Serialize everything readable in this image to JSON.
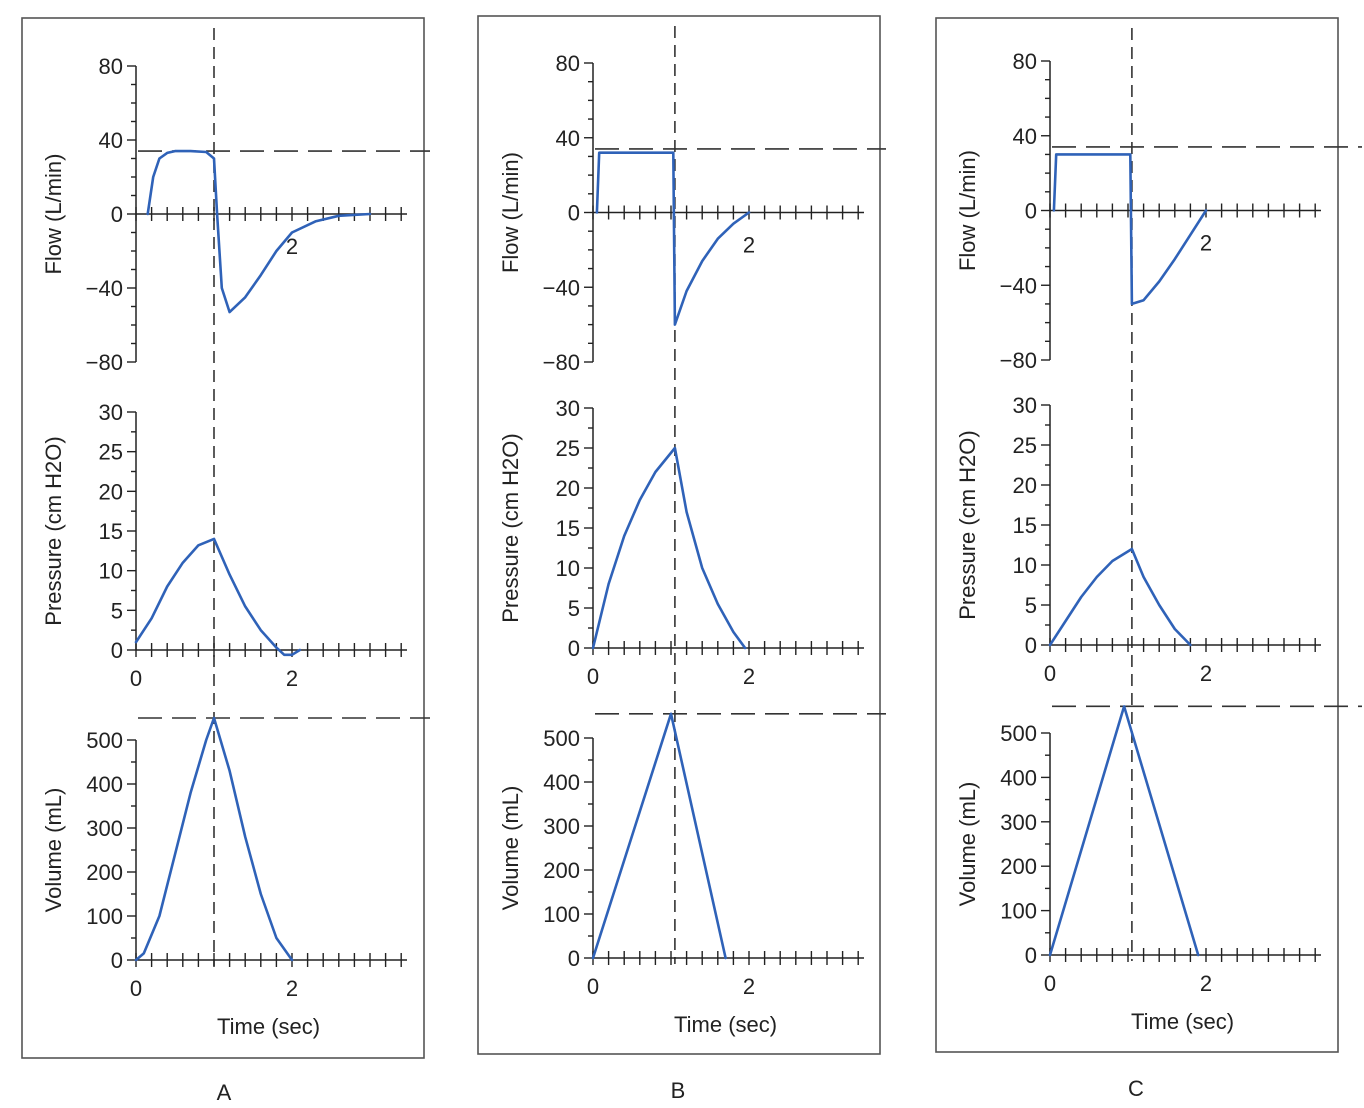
{
  "colors": {
    "curve": "#2f62b8",
    "axis": "#222222",
    "reference": "#333333"
  },
  "chart_data": [
    {
      "type": "line",
      "panel_label": "A",
      "xlabel": "Time (sec)",
      "xlim": [
        0,
        3.5
      ],
      "x_tick_labels": [
        "0",
        "2"
      ],
      "inspiration_end_time": 1.0,
      "subplots": [
        {
          "name": "flow",
          "ylabel": "Flow (L/min)",
          "ylim": [
            -80,
            80
          ],
          "y_tick_labels": [
            "80",
            "40",
            "0",
            "−40",
            "−80"
          ],
          "reference_y": 34,
          "annotations": [
            {
              "text": "2",
              "x": 2.0
            }
          ],
          "x": [
            0.15,
            0.22,
            0.3,
            0.4,
            0.5,
            0.7,
            0.9,
            1.0,
            1.04,
            1.1,
            1.2,
            1.4,
            1.6,
            1.8,
            2.0,
            2.3,
            2.6,
            3.0
          ],
          "y": [
            0,
            20,
            30,
            33,
            34,
            34,
            33.5,
            30,
            0,
            -40,
            -53,
            -45,
            -33,
            -20,
            -10,
            -4,
            -1,
            0
          ]
        },
        {
          "name": "pressure",
          "ylabel": "Pressure (cm H2O)",
          "ylim": [
            0,
            30
          ],
          "y_tick_labels": [
            "30",
            "25",
            "20",
            "15",
            "10",
            "5",
            "0"
          ],
          "x_tick_labels": [
            "0",
            "2"
          ],
          "x": [
            0,
            0.2,
            0.4,
            0.6,
            0.8,
            1.0,
            1.2,
            1.4,
            1.6,
            1.8,
            1.9,
            2.0,
            2.1
          ],
          "y": [
            1,
            4,
            8,
            11,
            13.2,
            14,
            9.5,
            5.5,
            2.5,
            0.3,
            -0.6,
            -0.6,
            0
          ]
        },
        {
          "name": "volume",
          "ylabel": "Volume (mL)",
          "ylim": [
            0,
            500
          ],
          "y_tick_labels": [
            "500",
            "400",
            "300",
            "200",
            "100",
            "0"
          ],
          "x_tick_labels": [
            "0",
            "2"
          ],
          "reference_y": 550,
          "x": [
            0,
            0.1,
            0.3,
            0.5,
            0.7,
            0.9,
            1.0,
            1.2,
            1.4,
            1.6,
            1.8,
            2.0
          ],
          "y": [
            0,
            15,
            100,
            240,
            380,
            500,
            550,
            430,
            280,
            150,
            50,
            0
          ]
        }
      ]
    },
    {
      "type": "line",
      "panel_label": "B",
      "xlabel": "Time (sec)",
      "xlim": [
        0,
        3.5
      ],
      "x_tick_labels": [
        "0",
        "2"
      ],
      "inspiration_end_time": 1.05,
      "subplots": [
        {
          "name": "flow",
          "ylabel": "Flow (L/min)",
          "ylim": [
            -80,
            80
          ],
          "y_tick_labels": [
            "80",
            "40",
            "0",
            "−40",
            "−80"
          ],
          "reference_y": 34,
          "annotations": [
            {
              "text": "2",
              "x": 2.0
            }
          ],
          "x": [
            0.05,
            0.08,
            1.03,
            1.05,
            1.2,
            1.4,
            1.6,
            1.8,
            2.0
          ],
          "y": [
            0,
            32,
            32,
            -60,
            -42,
            -26,
            -14,
            -6,
            0
          ]
        },
        {
          "name": "pressure",
          "ylabel": "Pressure (cm H2O)",
          "ylim": [
            0,
            30
          ],
          "y_tick_labels": [
            "30",
            "25",
            "20",
            "15",
            "10",
            "5",
            "0"
          ],
          "x_tick_labels": [
            "0",
            "2"
          ],
          "x": [
            0,
            0.2,
            0.4,
            0.6,
            0.8,
            1.05,
            1.2,
            1.4,
            1.6,
            1.8,
            1.95
          ],
          "y": [
            0,
            8,
            14,
            18.5,
            22,
            25,
            17,
            10,
            5.5,
            2,
            0
          ]
        },
        {
          "name": "volume",
          "ylabel": "Volume (mL)",
          "ylim": [
            0,
            500
          ],
          "y_tick_labels": [
            "500",
            "400",
            "300",
            "200",
            "100",
            "0"
          ],
          "x_tick_labels": [
            "0",
            "2"
          ],
          "reference_y": 555,
          "x": [
            0,
            1.0,
            1.7
          ],
          "y": [
            0,
            555,
            0
          ]
        }
      ]
    },
    {
      "type": "line",
      "panel_label": "C",
      "xlabel": "Time (sec)",
      "xlim": [
        0,
        3.5
      ],
      "x_tick_labels": [
        "0",
        "2"
      ],
      "inspiration_end_time": 1.05,
      "subplots": [
        {
          "name": "flow",
          "ylabel": "Flow (L/min)",
          "ylim": [
            -80,
            80
          ],
          "y_tick_labels": [
            "80",
            "40",
            "0",
            "−40",
            "−80"
          ],
          "reference_y": 34,
          "annotations": [
            {
              "text": "2",
              "x": 2.0
            }
          ],
          "x": [
            0.05,
            0.08,
            1.03,
            1.05,
            1.2,
            1.4,
            1.6,
            1.8,
            2.0
          ],
          "y": [
            0,
            30,
            30,
            -50,
            -48,
            -38,
            -26,
            -13,
            0
          ]
        },
        {
          "name": "pressure",
          "ylabel": "Pressure (cm H2O)",
          "ylim": [
            0,
            30
          ],
          "y_tick_labels": [
            "30",
            "25",
            "20",
            "15",
            "10",
            "5",
            "0"
          ],
          "x_tick_labels": [
            "0",
            "2"
          ],
          "x": [
            0,
            0.2,
            0.4,
            0.6,
            0.8,
            1.05,
            1.2,
            1.4,
            1.6,
            1.8
          ],
          "y": [
            0,
            3,
            6,
            8.5,
            10.5,
            12,
            8.5,
            5,
            2,
            0
          ]
        },
        {
          "name": "volume",
          "ylabel": "Volume (mL)",
          "ylim": [
            0,
            500
          ],
          "y_tick_labels": [
            "500",
            "400",
            "300",
            "200",
            "100",
            "0"
          ],
          "x_tick_labels": [
            "0",
            "2"
          ],
          "reference_y": 560,
          "x": [
            0,
            0.95,
            1.9
          ],
          "y": [
            0,
            560,
            0
          ]
        }
      ]
    }
  ]
}
